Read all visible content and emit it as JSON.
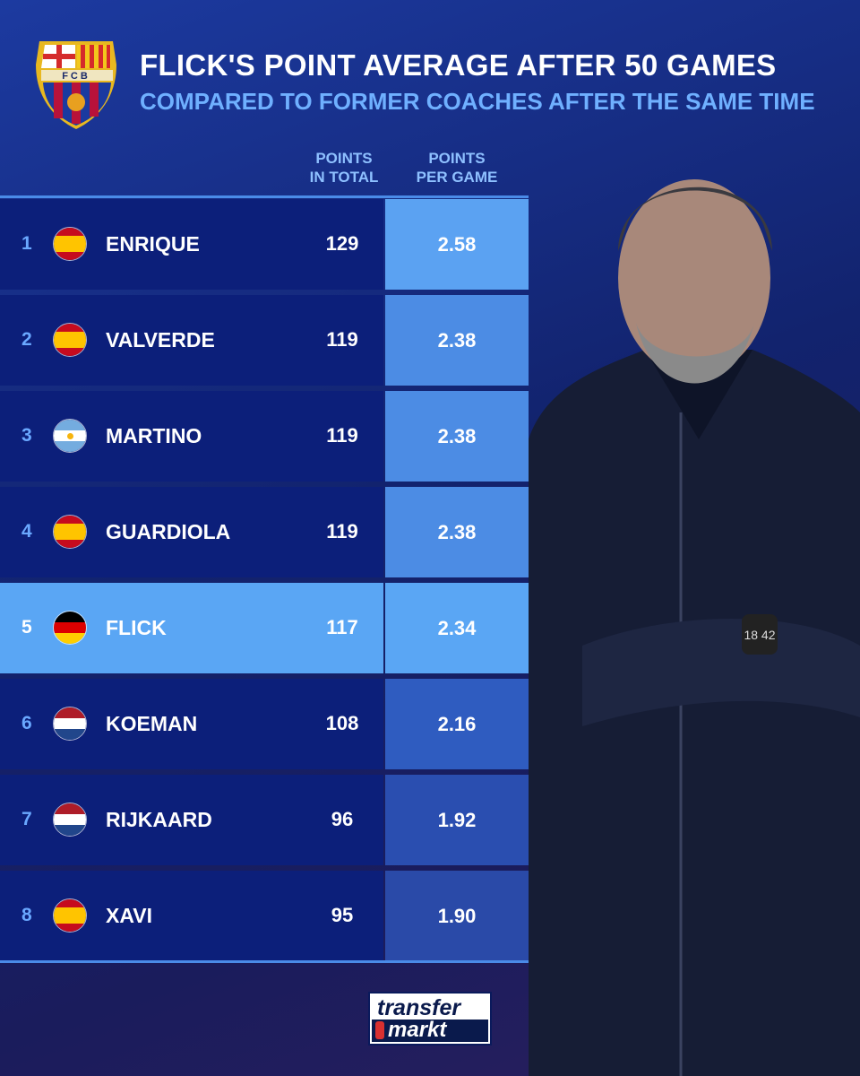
{
  "header": {
    "title": "FLICK'S POINT AVERAGE AFTER 50 GAMES",
    "subtitle": "COMPARED TO FORMER COACHES AFTER THE SAME TIME",
    "crest_text": "FCB"
  },
  "columns": {
    "points_total": [
      "POINTS",
      "IN TOTAL"
    ],
    "points_per_game": [
      "POINTS",
      "PER GAME"
    ]
  },
  "rows": [
    {
      "rank": "1",
      "flag": "spain",
      "name": "ENRIQUE",
      "points": "129",
      "ppg": "2.58",
      "ppg_color": "#5ba2f2"
    },
    {
      "rank": "2",
      "flag": "spain",
      "name": "VALVERDE",
      "points": "119",
      "ppg": "2.38",
      "ppg_color": "#4c8ce4"
    },
    {
      "rank": "3",
      "flag": "argentina",
      "name": "MARTINO",
      "points": "119",
      "ppg": "2.38",
      "ppg_color": "#4c8ce4"
    },
    {
      "rank": "4",
      "flag": "spain",
      "name": "GUARDIOLA",
      "points": "119",
      "ppg": "2.38",
      "ppg_color": "#4c8ce4"
    },
    {
      "rank": "5",
      "flag": "germany",
      "name": "FLICK",
      "points": "117",
      "ppg": "2.34",
      "ppg_color": "#5aa6f4",
      "highlight": true
    },
    {
      "rank": "6",
      "flag": "netherlands",
      "name": "KOEMAN",
      "points": "108",
      "ppg": "2.16",
      "ppg_color": "#2f5cc0"
    },
    {
      "rank": "7",
      "flag": "netherlands",
      "name": "RIJKAARD",
      "points": "96",
      "ppg": "1.92",
      "ppg_color": "#2a4eb0"
    },
    {
      "rank": "8",
      "flag": "spain",
      "name": "XAVI",
      "points": "95",
      "ppg": "1.90",
      "ppg_color": "#2a4aa8"
    }
  ],
  "footer": {
    "logo_line1": "transfer",
    "logo_line2": "markt"
  },
  "photo": {
    "watch_text": "18 42"
  }
}
